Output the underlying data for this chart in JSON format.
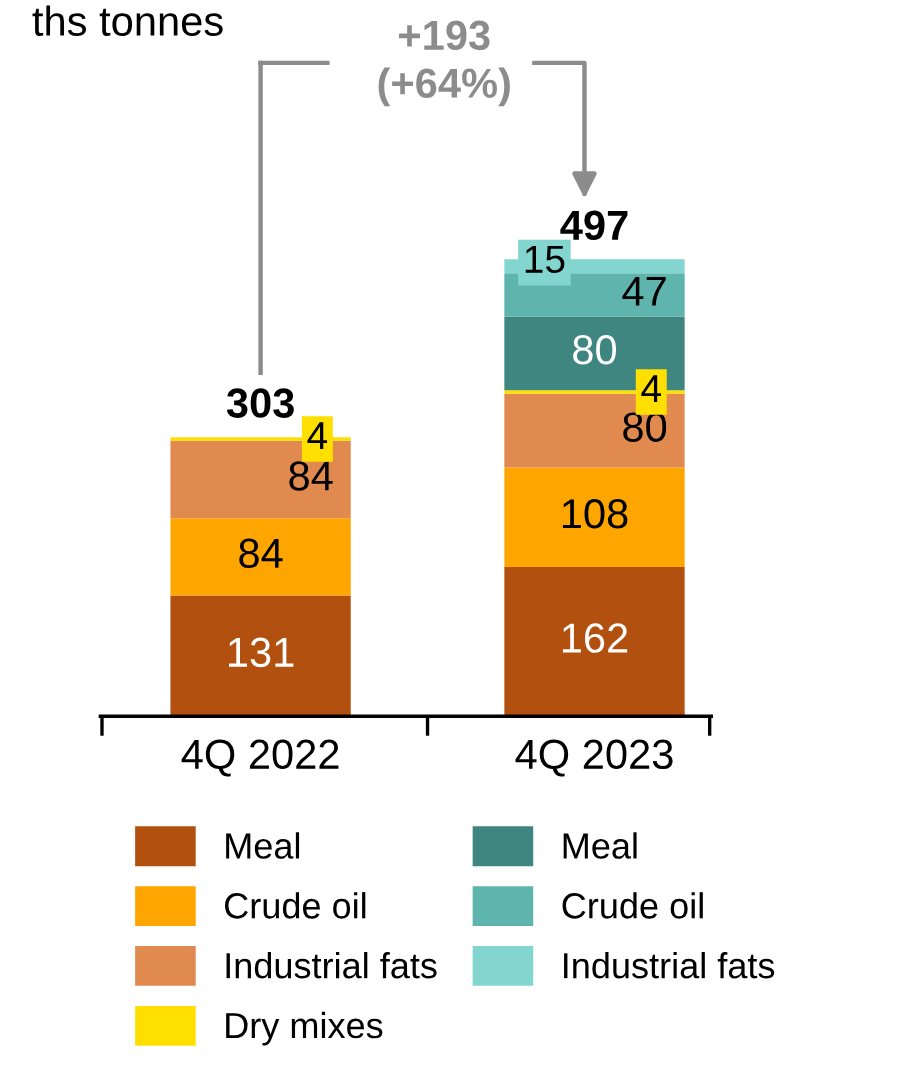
{
  "chart_data": {
    "type": "bar",
    "stacked": true,
    "categories": [
      "4Q 2022",
      "4Q 2023"
    ],
    "series": [
      {
        "name": "Meal",
        "color": "#b2500f",
        "values": [
          131,
          162
        ]
      },
      {
        "name": "Crude oil",
        "color": "#ffa500",
        "values": [
          84,
          108
        ]
      },
      {
        "name": "Industrial fats",
        "color": "#e08a50",
        "values": [
          84,
          80
        ]
      },
      {
        "name": "Dry mixes",
        "color": "#ffdf00",
        "values": [
          4,
          4
        ]
      },
      {
        "name": "Meal",
        "color": "#3f8580",
        "values": [
          null,
          80
        ]
      },
      {
        "name": "Crude oil",
        "color": "#5fb5ad",
        "values": [
          null,
          47
        ]
      },
      {
        "name": "Industrial fats",
        "color": "#82d6cf",
        "values": [
          null,
          15
        ]
      }
    ],
    "data_labels": true,
    "totals": [
      "303",
      "497"
    ],
    "annotations": [
      "+193\n(+64%)",
      "ths tonnes"
    ],
    "legend": "bottom"
  }
}
